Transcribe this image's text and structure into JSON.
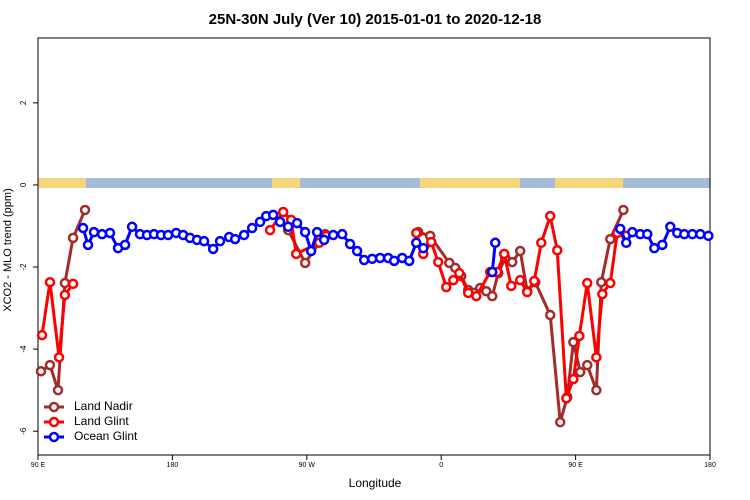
{
  "chart_data": {
    "type": "line",
    "title": "25N-30N July (Ver 10)   2015-01-01 to 2020-12-18",
    "x_label": "Longitude",
    "y_label": "XCO2 - MLO trend (ppm)",
    "xlim": [
      90,
      540
    ],
    "ylim": [
      -6.58,
      3.58
    ],
    "xticks": [
      {
        "value": 90,
        "label": "90 E"
      },
      {
        "value": 180,
        "label": "180"
      },
      {
        "value": 270,
        "label": "90 W"
      },
      {
        "value": 360,
        "label": "0"
      },
      {
        "value": 450,
        "label": "90 E"
      },
      {
        "value": 540,
        "label": "180"
      }
    ],
    "yticks": [
      -6,
      -4,
      -2,
      0,
      2
    ],
    "legend": "bottomleft",
    "series": [
      {
        "name": "Land Nadir",
        "color": "#a52a2a",
        "x": [
          92,
          98,
          103.4,
          108,
          113.5,
          121.5,
          null,
          257.5,
          268.9,
          282.3,
          null,
          344.6,
          352.6,
          365.4,
          369.4,
          373.4,
          378.1,
          382.1,
          386.1,
          390.2,
          394.2,
          398.2,
          402.9,
          407.6,
          412.9,
          417.6,
          423,
          433,
          439.7,
          444.4,
          448.5,
          453.1,
          457.8,
          463.9,
          467.2,
          473.2,
          482
        ],
        "values": [
          -4.54,
          -4.39,
          -5.0,
          -2.39,
          -1.29,
          -0.61,
          null,
          -1.1,
          -1.9,
          -1.2,
          null,
          -1.15,
          -1.24,
          -1.9,
          -2.02,
          -2.22,
          -2.56,
          -2.63,
          -2.51,
          -2.59,
          -2.71,
          -2.15,
          -1.78,
          -1.88,
          -1.61,
          -2.59,
          -2.37,
          -3.17,
          -5.78,
          -5.17,
          -3.83,
          -4.56,
          -4.39,
          -5.0,
          -2.37,
          -1.32,
          -0.61
        ]
      },
      {
        "name": "Land Glint",
        "color": "#ff0000",
        "x": [
          92.7,
          98,
          104.1,
          108,
          113.5,
          null,
          245.4,
          254.2,
          259.5,
          262.9,
          278.3,
          283,
          null,
          343.3,
          348,
          353.3,
          358,
          363.4,
          368.1,
          372.1,
          378.1,
          383.5,
          392.8,
          397.5,
          402.2,
          406.9,
          412.9,
          417.6,
          422.3,
          427,
          433,
          437.7,
          443.8,
          448.5,
          452.5,
          457.8,
          463.9,
          467.9,
          473.2,
          477.9,
          483.9
        ],
        "values": [
          -3.66,
          -2.37,
          -4.2,
          -2.68,
          -2.41,
          null,
          -1.1,
          -0.66,
          -0.85,
          -1.68,
          -1.41,
          -1.24,
          null,
          -1.17,
          -1.68,
          -1.39,
          -1.88,
          -2.49,
          -2.32,
          -2.15,
          -2.63,
          -2.71,
          -2.12,
          -2.12,
          -1.68,
          -2.46,
          -2.32,
          -2.61,
          -2.34,
          -1.41,
          -0.76,
          -1.59,
          -5.2,
          -4.73,
          -3.68,
          -2.39,
          -4.2,
          -2.66,
          -2.39,
          -1.17,
          -1.24
        ]
      },
      {
        "name": "Ocean Glint",
        "color": "#0000ff",
        "x": [
          120.2,
          123.5,
          127.5,
          132.9,
          138.2,
          143.6,
          148.3,
          153,
          158.3,
          163,
          167.7,
          172.4,
          177.1,
          182.5,
          187.2,
          191.8,
          196.5,
          201.2,
          207.3,
          211.9,
          218,
          222,
          228,
          233.4,
          238.7,
          242.8,
          247.5,
          252.1,
          257.5,
          263.5,
          268.9,
          272.9,
          276.9,
          281.6,
          287.7,
          293.7,
          299,
          303.7,
          308.4,
          313.8,
          319.1,
          324.5,
          328.5,
          333.9,
          338.6,
          343.3,
          348,
          null,
          394.2,
          396.2,
          null,
          479.9,
          483.9,
          488,
          493.3,
          498,
          502.7,
          508.1,
          513.4,
          518.1,
          522.8,
          528.2,
          533.5,
          538.9
        ],
        "values": [
          -1.05,
          -1.46,
          -1.15,
          -1.2,
          -1.17,
          -1.54,
          -1.46,
          -1.02,
          -1.2,
          -1.22,
          -1.2,
          -1.22,
          -1.22,
          -1.17,
          -1.22,
          -1.29,
          -1.34,
          -1.37,
          -1.56,
          -1.37,
          -1.27,
          -1.32,
          -1.22,
          -1.05,
          -0.9,
          -0.76,
          -0.73,
          -0.9,
          -1.02,
          -0.93,
          -1.15,
          -1.61,
          -1.15,
          -1.34,
          -1.22,
          -1.2,
          -1.44,
          -1.61,
          -1.83,
          -1.8,
          -1.78,
          -1.78,
          -1.85,
          -1.78,
          -1.85,
          -1.41,
          -1.54,
          null,
          -2.12,
          -1.41,
          null,
          -1.07,
          -1.41,
          -1.15,
          -1.2,
          -1.2,
          -1.54,
          -1.46,
          -1.02,
          -1.17,
          -1.2,
          -1.2,
          -1.2,
          -1.24
        ]
      }
    ]
  }
}
